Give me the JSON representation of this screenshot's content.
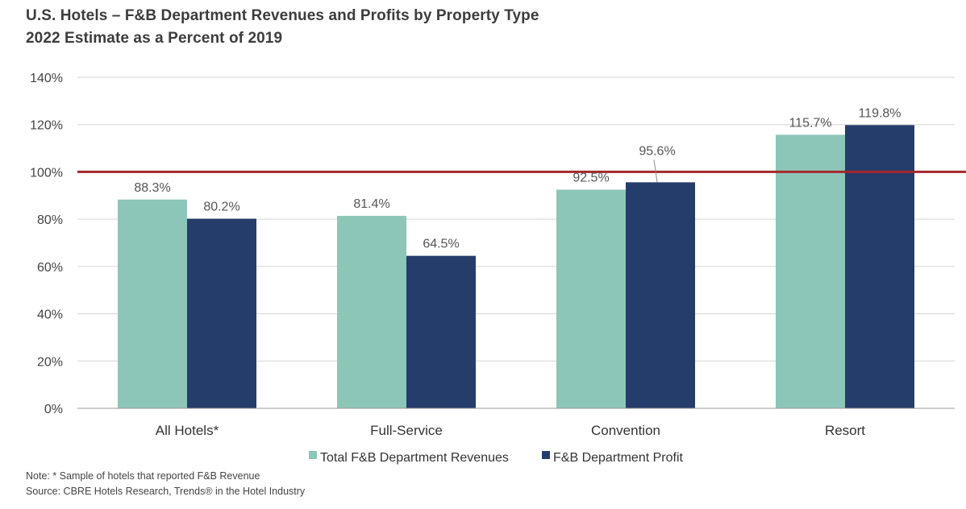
{
  "title_line1": "U.S. Hotels – F&B Department Revenues and Profits by Property Type",
  "title_line2": "2022 Estimate as a Percent of 2019",
  "note": "Note: * Sample of hotels that reported F&B Revenue",
  "source": "Source: CBRE Hotels Research, Trends® in the Hotel Industry",
  "colors": {
    "revenues": "#8cc6b8",
    "profit": "#243d6b",
    "reference_line": "#a3282b",
    "grid": "#d6d6d6"
  },
  "chart_data": {
    "type": "bar",
    "title": "U.S. Hotels – F&B Department Revenues and Profits by Property Type",
    "subtitle": "2022 Estimate as a Percent of 2019",
    "categories": [
      "All Hotels*",
      "Full-Service",
      "Convention",
      "Resort"
    ],
    "series": [
      {
        "name": "Total F&B Department Revenues",
        "values": [
          88.3,
          81.4,
          92.5,
          115.7
        ],
        "labels": [
          "88.3%",
          "81.4%",
          "92.5%",
          "115.7%"
        ]
      },
      {
        "name": "F&B Department Profit",
        "values": [
          80.2,
          64.5,
          95.6,
          119.8
        ],
        "labels": [
          "80.2%",
          "64.5%",
          "95.6%",
          "119.8%"
        ]
      }
    ],
    "ylim": [
      0,
      140
    ],
    "yticks": [
      0,
      20,
      40,
      60,
      80,
      100,
      120,
      140
    ],
    "ytick_labels": [
      "0%",
      "20%",
      "40%",
      "60%",
      "80%",
      "100%",
      "120%",
      "140%"
    ],
    "reference_line": 100,
    "xlabel": "",
    "ylabel": "",
    "grid": true,
    "legend_position": "bottom"
  }
}
